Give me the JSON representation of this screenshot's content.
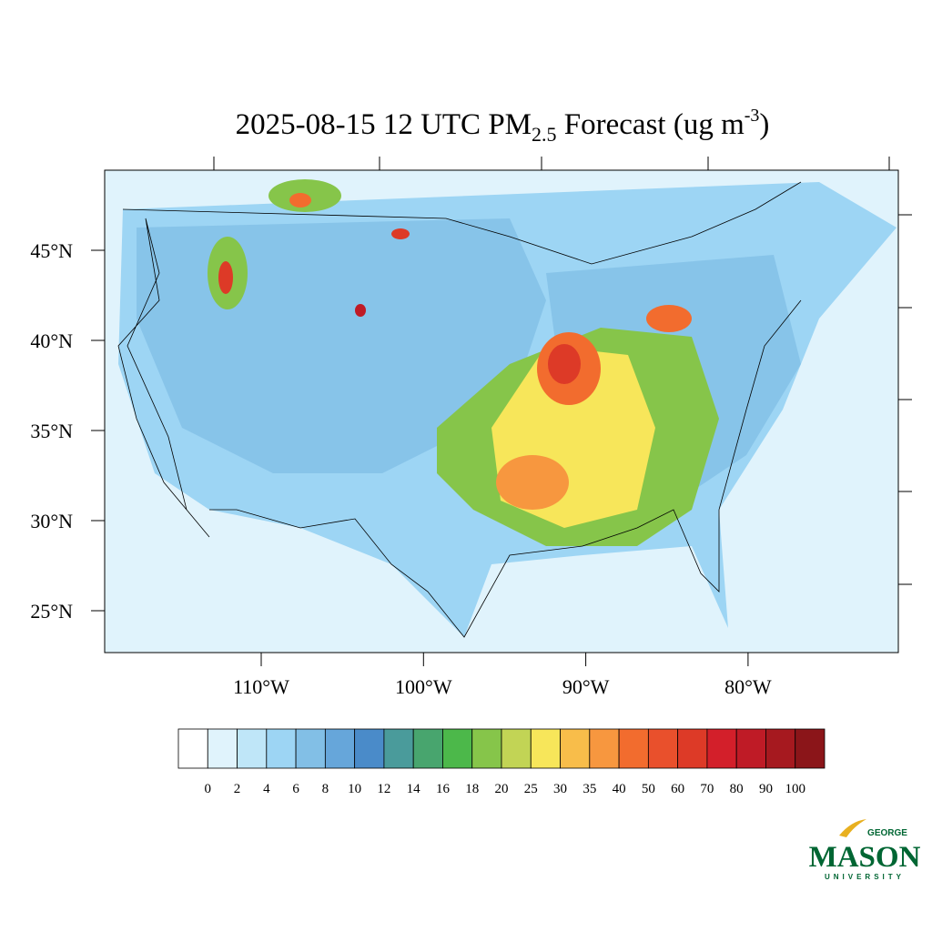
{
  "map": {
    "title": {
      "prefix": "2025-08-15 12 UTC PM",
      "subscript": "2.5",
      "middle": " Forecast (ug m",
      "superscript": "-3",
      "suffix": ")"
    },
    "lat_ticks": [
      {
        "value": 45,
        "label": "45°N"
      },
      {
        "value": 40,
        "label": "40°N"
      },
      {
        "value": 35,
        "label": "35°N"
      },
      {
        "value": 30,
        "label": "30°N"
      },
      {
        "value": 25,
        "label": "25°N"
      }
    ],
    "lon_ticks": [
      {
        "value": -110,
        "label": "110°W"
      },
      {
        "value": -100,
        "label": "100°W"
      },
      {
        "value": -90,
        "label": "90°W"
      },
      {
        "value": -80,
        "label": "80°W"
      }
    ],
    "colorbar": {
      "colors": [
        "#ffffff",
        "#e0f3fc",
        "#bfe6f8",
        "#9dd5f4",
        "#82bfe6",
        "#66a6da",
        "#4a8bc9",
        "#4a9b9b",
        "#48a56e",
        "#4cb84a",
        "#86c54a",
        "#c2d455",
        "#f7e65a",
        "#f8bd4a",
        "#f7973f",
        "#f26c2e",
        "#e9502c",
        "#dd3a27",
        "#d31f2a",
        "#bf1b26",
        "#a6191f",
        "#8b1519"
      ],
      "labels": [
        0,
        2,
        4,
        6,
        8,
        10,
        12,
        14,
        16,
        18,
        20,
        25,
        30,
        35,
        40,
        50,
        60,
        70,
        80,
        90,
        100
      ]
    },
    "logo": {
      "top": "GEORGE",
      "main": "MASON",
      "bottom": "UNIVERSITY"
    }
  }
}
